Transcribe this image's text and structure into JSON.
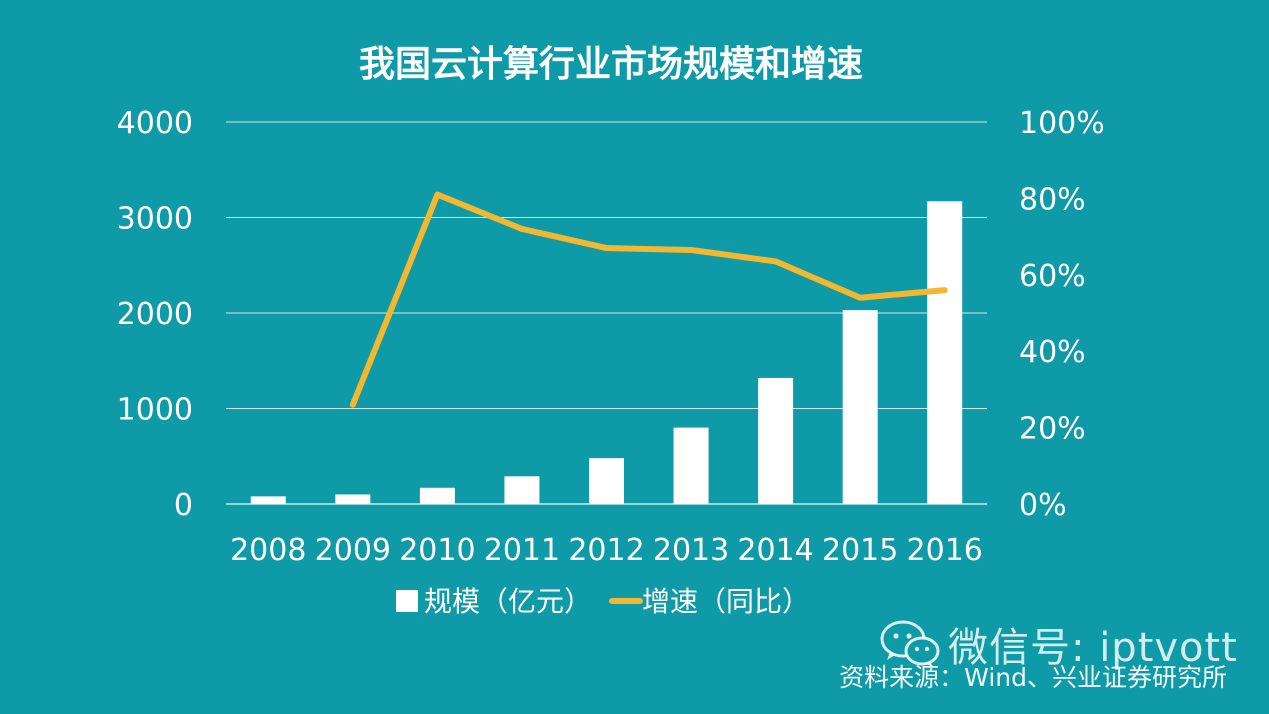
{
  "chart_data": {
    "type": "bar",
    "title": "我国云计算行业市场规模和增速",
    "categories": [
      "2008",
      "2009",
      "2010",
      "2011",
      "2012",
      "2013",
      "2014",
      "2015",
      "2016"
    ],
    "series": [
      {
        "name": "规模（亿元）",
        "type": "bar",
        "axis": "left",
        "values": [
          80,
          100,
          170,
          290,
          480,
          800,
          1320,
          2030,
          3170
        ]
      },
      {
        "name": "增速（同比）",
        "type": "line",
        "axis": "right",
        "values": [
          null,
          26,
          81,
          72,
          67,
          66.5,
          63.5,
          54,
          56
        ]
      }
    ],
    "ylim": [
      0,
      4000
    ],
    "y2lim": [
      0,
      100
    ],
    "y_ticks": [
      "0",
      "1000",
      "2000",
      "3000",
      "4000"
    ],
    "y2_ticks": [
      "0%",
      "20%",
      "40%",
      "60%",
      "80%",
      "100%"
    ],
    "colors": {
      "background": "#0f9aa8",
      "bar": "#ffffff",
      "line": "#f3b730",
      "grid": "#cfe9ec"
    },
    "grid": true,
    "legend_position": "bottom"
  },
  "watermark": {
    "icon": "wechat-icon",
    "text": "微信号: iptvott"
  },
  "source": "资料来源：Wind、兴业证券研究所"
}
